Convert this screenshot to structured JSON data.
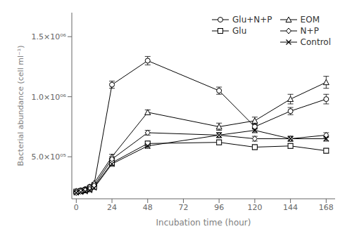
{
  "chart_data": {
    "type": "line",
    "xlabel": "Incubation time (hour)",
    "ylabel": "Bacterial abundance (cell ml⁻¹)",
    "x": [
      0,
      3,
      6,
      9,
      12,
      24,
      48,
      96,
      120,
      144,
      168
    ],
    "xlim": [
      -3,
      174
    ],
    "xticks": [
      0,
      24,
      48,
      72,
      96,
      120,
      144,
      168
    ],
    "ylim": [
      150000,
      1700000
    ],
    "yticks": [
      {
        "value": 500000,
        "label": "5.0×10⁰⁵"
      },
      {
        "value": 1000000,
        "label": "1.0×10⁰⁶"
      },
      {
        "value": 1500000,
        "label": "1.5×10⁰⁶"
      }
    ],
    "grid": false,
    "legend": "upper right",
    "series": [
      {
        "name": "Glu+N+P",
        "color": "black",
        "marker": "circle",
        "values": [
          210000,
          220000,
          230000,
          250000,
          270000,
          1100000,
          1300000,
          1050000,
          750000,
          880000,
          980000
        ],
        "yerr": [
          5000,
          5000,
          5000,
          5000,
          5000,
          30000,
          35000,
          30000,
          20000,
          30000,
          40000
        ]
      },
      {
        "name": "Glu",
        "color": "black",
        "marker": "square",
        "values": [
          210000,
          215000,
          220000,
          230000,
          250000,
          450000,
          610000,
          620000,
          580000,
          590000,
          550000
        ],
        "yerr": [
          5000,
          5000,
          5000,
          5000,
          5000,
          20000,
          20000,
          20000,
          20000,
          20000,
          20000
        ]
      },
      {
        "name": "EOM",
        "color": "black",
        "marker": "triangle",
        "values": [
          215000,
          220000,
          230000,
          250000,
          280000,
          500000,
          870000,
          750000,
          800000,
          980000,
          1120000
        ],
        "yerr": [
          5000,
          5000,
          5000,
          5000,
          5000,
          20000,
          20000,
          30000,
          30000,
          40000,
          50000
        ]
      },
      {
        "name": "N+P",
        "color": "black",
        "marker": "diamond",
        "values": [
          200000,
          210000,
          220000,
          230000,
          260000,
          480000,
          700000,
          680000,
          650000,
          650000,
          680000
        ],
        "yerr": [
          5000,
          5000,
          5000,
          5000,
          5000,
          20000,
          20000,
          20000,
          20000,
          20000,
          20000
        ]
      },
      {
        "name": "Control",
        "color": "black",
        "marker": "x",
        "values": [
          200000,
          205000,
          210000,
          220000,
          240000,
          440000,
          590000,
          680000,
          720000,
          650000,
          650000
        ],
        "yerr": [
          5000,
          5000,
          5000,
          5000,
          5000,
          20000,
          20000,
          20000,
          20000,
          20000,
          20000
        ]
      }
    ]
  }
}
